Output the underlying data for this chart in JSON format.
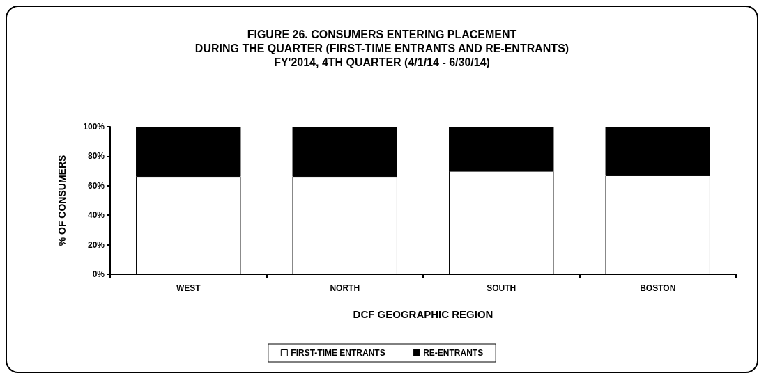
{
  "chart_data": {
    "type": "bar",
    "title": "FIGURE 26. CONSUMERS ENTERING PLACEMENT\nDURING THE QUARTER (FIRST-TIME ENTRANTS AND RE-ENTRANTS)\nFY'2014, 4TH QUARTER (4/1/14 - 6/30/14)",
    "xlabel": "DCF GEOGRAPHIC REGION",
    "ylabel": "% OF CONSUMERS",
    "categories": [
      "WEST",
      "NORTH",
      "SOUTH",
      "BOSTON"
    ],
    "stacked": true,
    "series": [
      {
        "name": "FIRST-TIME ENTRANTS",
        "color": "#ffffff",
        "values": [
          66,
          66,
          70,
          67
        ]
      },
      {
        "name": "RE-ENTRANTS",
        "color": "#000000",
        "values": [
          34,
          34,
          30,
          33
        ]
      }
    ],
    "ylim": [
      0,
      100
    ],
    "yticks": [
      {
        "value": 0,
        "label": "0%"
      },
      {
        "value": 20,
        "label": "20%"
      },
      {
        "value": 40,
        "label": "40%"
      },
      {
        "value": 60,
        "label": "60%"
      },
      {
        "value": 80,
        "label": "80%"
      },
      {
        "value": 100,
        "label": "100%"
      }
    ],
    "grid": false,
    "legend": "bottom"
  }
}
